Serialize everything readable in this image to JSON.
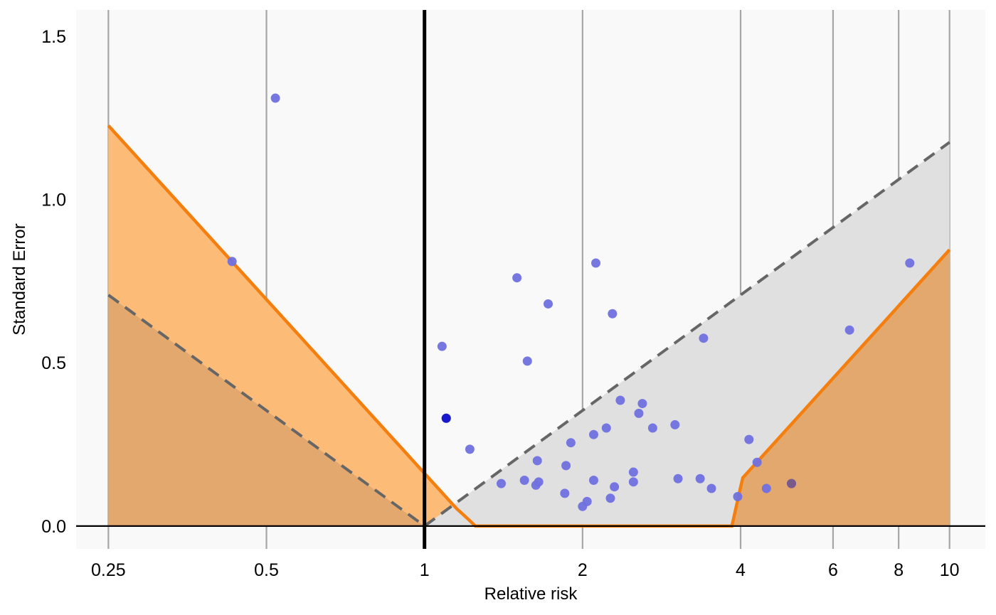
{
  "chart_data": {
    "type": "scatter",
    "title": "",
    "xlabel": "Relative risk",
    "ylabel": "Standard Error",
    "x_scale": "log",
    "xlim": [
      0.217,
      11.7
    ],
    "ylim": [
      -0.07,
      1.58
    ],
    "x_ticks": [
      0.25,
      0.5,
      1,
      2,
      4,
      6,
      8,
      10
    ],
    "x_tick_labels": [
      "0.25",
      "0.5",
      "1",
      "2",
      "4",
      "6",
      "8",
      "10"
    ],
    "y_ticks": [
      0,
      0.5,
      1,
      1.5
    ],
    "y_tick_labels": [
      "0.0",
      "0.5",
      "1.0",
      "1.5"
    ],
    "grid": "vertical lines at x ticks",
    "reference_line_x": 1,
    "x_extent": [
      0.25,
      10
    ],
    "colors": {
      "panel_bg": "#f9f9f9",
      "grid": "#a6a6a6",
      "orange_line": "#f47e0e",
      "orange_fill": "#fdbb78",
      "brown_fill": "#e2a86d",
      "funnel_fill": "#e0e0e0",
      "dashed": "#666666",
      "point": "#7070e0",
      "point_highlight": "#1818cc",
      "point_brown": "#7a5a8a"
    },
    "points": [
      [
        0.43,
        0.81
      ],
      [
        0.52,
        1.31
      ],
      [
        1.08,
        0.55
      ],
      [
        1.1,
        0.33
      ],
      [
        1.22,
        0.235
      ],
      [
        1.4,
        0.13
      ],
      [
        1.5,
        0.76
      ],
      [
        1.55,
        0.14
      ],
      [
        1.57,
        0.505
      ],
      [
        1.63,
        0.125
      ],
      [
        1.64,
        0.2
      ],
      [
        1.65,
        0.135
      ],
      [
        1.72,
        0.68
      ],
      [
        1.85,
        0.1
      ],
      [
        1.86,
        0.185
      ],
      [
        1.9,
        0.255
      ],
      [
        2.0,
        0.06
      ],
      [
        2.04,
        0.075
      ],
      [
        2.1,
        0.28
      ],
      [
        2.1,
        0.14
      ],
      [
        2.12,
        0.805
      ],
      [
        2.22,
        0.3
      ],
      [
        2.26,
        0.085
      ],
      [
        2.28,
        0.65
      ],
      [
        2.3,
        0.12
      ],
      [
        2.36,
        0.385
      ],
      [
        2.5,
        0.135
      ],
      [
        2.5,
        0.165
      ],
      [
        2.56,
        0.345
      ],
      [
        2.6,
        0.375
      ],
      [
        2.72,
        0.3
      ],
      [
        3.0,
        0.31
      ],
      [
        3.04,
        0.145
      ],
      [
        3.35,
        0.145
      ],
      [
        3.4,
        0.575
      ],
      [
        3.52,
        0.115
      ],
      [
        3.95,
        0.09
      ],
      [
        4.15,
        0.265
      ],
      [
        4.3,
        0.195
      ],
      [
        4.48,
        0.115
      ],
      [
        5.0,
        0.13
      ],
      [
        6.45,
        0.6
      ],
      [
        8.4,
        0.805
      ]
    ],
    "highlight_points": [
      [
        1.1,
        0.33
      ]
    ],
    "brown_points": [
      [
        5.0,
        0.13
      ]
    ]
  }
}
